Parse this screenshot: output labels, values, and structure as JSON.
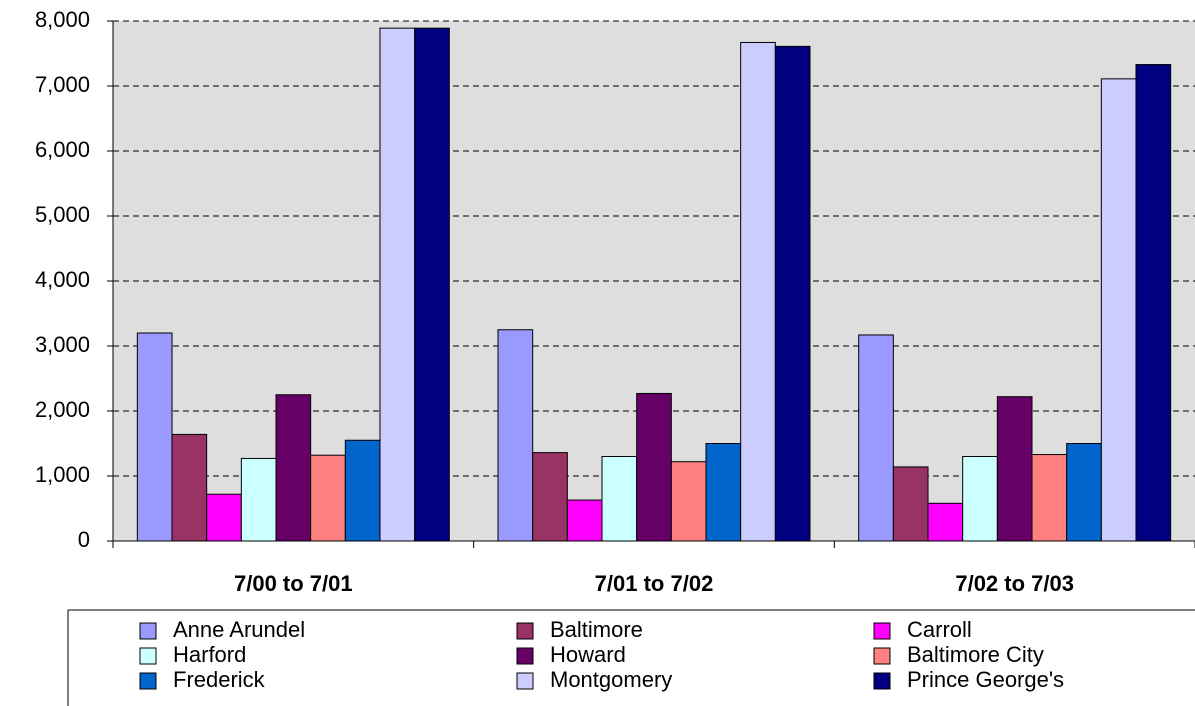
{
  "chart_data": {
    "type": "bar",
    "categories": [
      "7/00 to 7/01",
      "7/01 to 7/02",
      "7/02 to 7/03"
    ],
    "series": [
      {
        "name": "Anne Arundel",
        "color": "#9999ff",
        "values": [
          3200,
          3250,
          3170
        ]
      },
      {
        "name": "Baltimore",
        "color": "#993366",
        "values": [
          1640,
          1360,
          1140
        ]
      },
      {
        "name": "Carroll",
        "color": "#ff00ff",
        "values": [
          720,
          630,
          580
        ]
      },
      {
        "name": "Harford",
        "color": "#ccffff",
        "values": [
          1270,
          1300,
          1300
        ]
      },
      {
        "name": "Howard",
        "color": "#660066",
        "values": [
          2250,
          2270,
          2220
        ]
      },
      {
        "name": "Baltimore City",
        "color": "#ff8080",
        "values": [
          1320,
          1220,
          1330
        ]
      },
      {
        "name": "Frederick",
        "color": "#0066cc",
        "values": [
          1550,
          1500,
          1500
        ]
      },
      {
        "name": "Montgomery",
        "color": "#ccccff",
        "values": [
          7890,
          7670,
          7110
        ]
      },
      {
        "name": "Prince George's",
        "color": "#000080",
        "values": [
          7890,
          7610,
          7330
        ]
      }
    ],
    "ylim": [
      0,
      8000
    ],
    "yticks": [
      0,
      {
        "value": 1000,
        "label": "1,000"
      },
      {
        "value": 2000,
        "label": "2,000"
      },
      {
        "value": 3000,
        "label": "3,000"
      },
      {
        "value": 4000,
        "label": "4,000"
      },
      {
        "value": 5000,
        "label": "5,000"
      },
      {
        "value": 6000,
        "label": "6,000"
      },
      {
        "value": 7000,
        "label": "7,000"
      },
      {
        "value": 8000,
        "label": "8,000"
      }
    ],
    "grid": true,
    "plot_background": "#dedede",
    "legend": "bottom"
  }
}
